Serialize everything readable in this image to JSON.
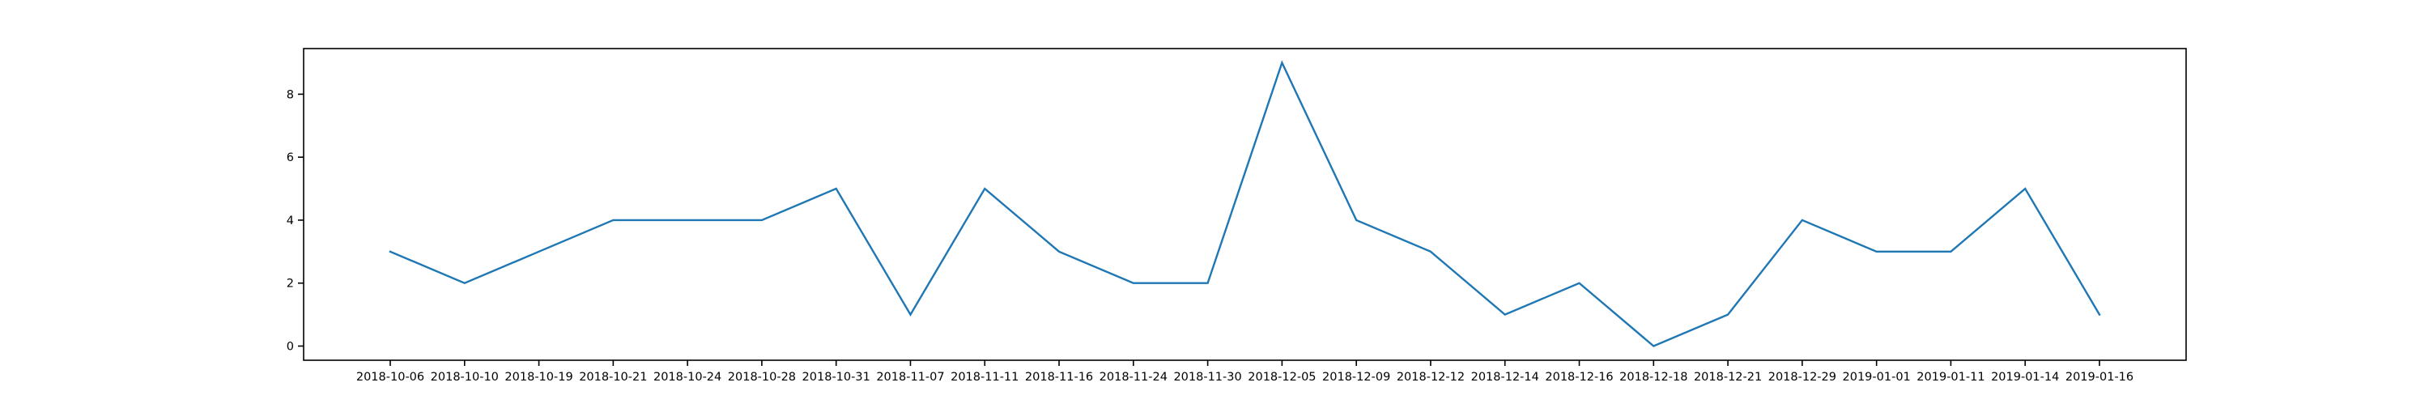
{
  "chart_data": {
    "type": "line",
    "title": "",
    "xlabel": "",
    "ylabel": "",
    "x": [
      "2018-10-06",
      "2018-10-10",
      "2018-10-19",
      "2018-10-21",
      "2018-10-24",
      "2018-10-28",
      "2018-10-31",
      "2018-11-07",
      "2018-11-11",
      "2018-11-16",
      "2018-11-24",
      "2018-11-30",
      "2018-12-05",
      "2018-12-09",
      "2018-12-12",
      "2018-12-14",
      "2018-12-16",
      "2018-12-18",
      "2018-12-21",
      "2018-12-29",
      "2019-01-01",
      "2019-01-11",
      "2019-01-14",
      "2019-01-16"
    ],
    "series": [
      {
        "values": [
          3,
          2,
          3,
          4,
          4,
          4,
          5,
          1,
          5,
          3,
          2,
          2,
          9,
          4,
          3,
          1,
          2,
          0,
          1,
          4,
          3,
          3,
          5,
          1
        ]
      }
    ],
    "yticks": [
      0,
      2,
      4,
      6,
      8
    ],
    "ylim": [
      -0.45,
      9.45
    ],
    "grid": false,
    "legend": "none",
    "line_color": "#1f77b4"
  }
}
